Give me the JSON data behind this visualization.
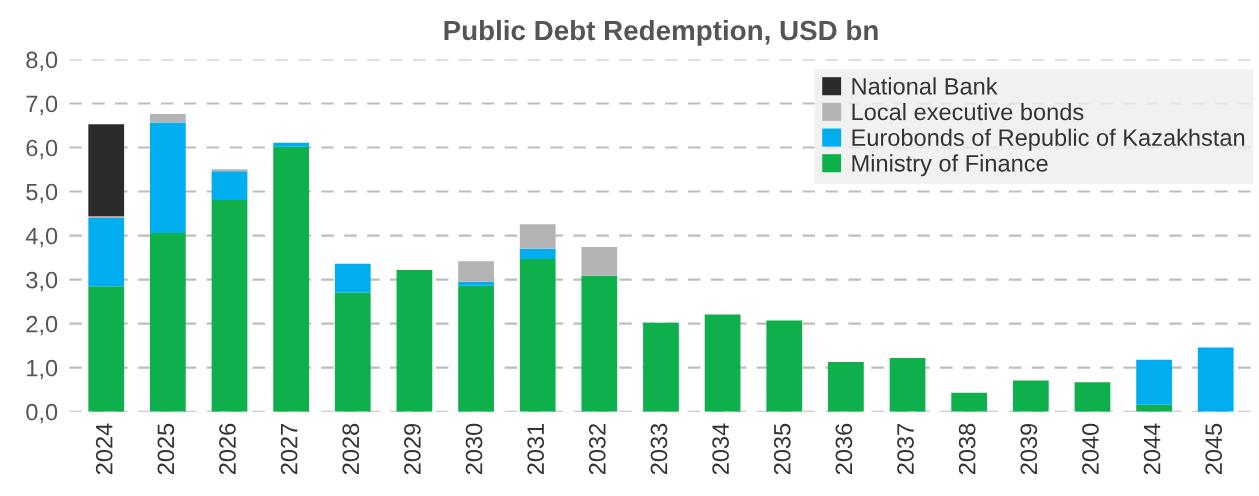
{
  "chart_data": {
    "type": "bar",
    "stacked": true,
    "title": "Public Debt Redemption, USD bn",
    "categories": [
      "2024",
      "2025",
      "2026",
      "2027",
      "2028",
      "2029",
      "2030",
      "2031",
      "2032",
      "2033",
      "2034",
      "2035",
      "2036",
      "2037",
      "2038",
      "2039",
      "2040",
      "2044",
      "2045"
    ],
    "series": [
      {
        "name": "Ministry of Finance",
        "color": "#0db04b",
        "values": [
          2.85,
          4.06,
          4.81,
          6.02,
          2.71,
          3.22,
          2.86,
          3.47,
          3.09,
          2.02,
          2.21,
          2.07,
          1.13,
          1.22,
          0.43,
          0.71,
          0.67,
          0.16,
          0
        ]
      },
      {
        "name": "Eurobonds of Republic of Kazakhstan",
        "color": "#00aeef",
        "values": [
          1.55,
          2.51,
          0.65,
          0.09,
          0.65,
          0,
          0.09,
          0.23,
          0,
          0,
          0,
          0,
          0,
          0,
          0,
          0,
          0,
          1.02,
          1.46
        ]
      },
      {
        "name": "Local executive bonds",
        "color": "#b4b4b4",
        "values": [
          0.04,
          0.19,
          0.05,
          0,
          0,
          0,
          0.47,
          0.56,
          0.65,
          0,
          0,
          0,
          0,
          0,
          0,
          0,
          0,
          0,
          0
        ]
      },
      {
        "name": "National Bank",
        "color": "#2b2b2b",
        "values": [
          2.09,
          0,
          0,
          0,
          0,
          0,
          0,
          0,
          0,
          0,
          0,
          0,
          0,
          0,
          0,
          0,
          0,
          0,
          0
        ]
      }
    ],
    "ylim": [
      0,
      8
    ],
    "yticks": [
      {
        "value": 0,
        "label": "0,0"
      },
      {
        "value": 1,
        "label": "1,0"
      },
      {
        "value": 2,
        "label": "2,0"
      },
      {
        "value": 3,
        "label": "3,0"
      },
      {
        "value": 4,
        "label": "4,0"
      },
      {
        "value": 5,
        "label": "5,0"
      },
      {
        "value": 6,
        "label": "6,0"
      },
      {
        "value": 7,
        "label": "7,0"
      },
      {
        "value": 8,
        "label": "8,0"
      }
    ],
    "grid": "y",
    "legend": "top right"
  }
}
